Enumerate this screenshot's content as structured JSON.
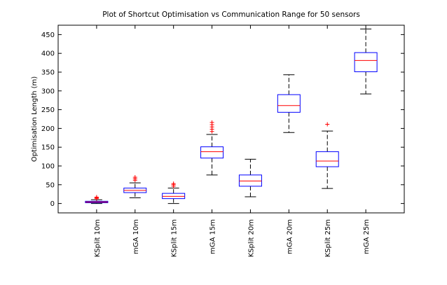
{
  "chart_data": {
    "type": "box",
    "title": "Plot of Shortcut Optimisation vs Communication Range for 50 sensors",
    "xlabel": "",
    "ylabel": "Optimisation Length (m)",
    "ylim": [
      -25,
      475
    ],
    "yticks": [
      0,
      50,
      100,
      150,
      200,
      250,
      300,
      350,
      400,
      450
    ],
    "grid": false,
    "colors": {
      "box": "#0000ff",
      "median": "#ff0000",
      "whisker": "#000000",
      "outlier": "#ff0000"
    },
    "categories": [
      "KSplit 10m",
      "mGA 10m",
      "KSplit 15m",
      "mGA 15m",
      "KSplit 20m",
      "mGA 20m",
      "KSplit 25m",
      "mGA 25m"
    ],
    "boxes": [
      {
        "whisker_low": 0,
        "q1": 2,
        "median": 4,
        "q3": 6,
        "whisker_high": 10,
        "outliers": [
          13,
          15,
          17
        ]
      },
      {
        "whisker_low": 15,
        "q1": 29,
        "median": 35,
        "q3": 41,
        "whisker_high": 55,
        "outliers": [
          62,
          66,
          70
        ]
      },
      {
        "whisker_low": 0,
        "q1": 13,
        "median": 19,
        "q3": 27,
        "whisker_high": 41,
        "outliers": [
          46,
          50,
          53
        ]
      },
      {
        "whisker_low": 76,
        "q1": 121,
        "median": 138,
        "q3": 151,
        "whisker_high": 184,
        "outliers": [
          192,
          198,
          204,
          210,
          216
        ]
      },
      {
        "whisker_low": 18,
        "q1": 46,
        "median": 60,
        "q3": 76,
        "whisker_high": 118,
        "outliers": []
      },
      {
        "whisker_low": 189,
        "q1": 243,
        "median": 261,
        "q3": 290,
        "whisker_high": 343,
        "outliers": []
      },
      {
        "whisker_low": 40,
        "q1": 98,
        "median": 113,
        "q3": 138,
        "whisker_high": 193,
        "outliers": [
          211
        ]
      },
      {
        "whisker_low": 292,
        "q1": 351,
        "median": 381,
        "q3": 402,
        "whisker_high": 465,
        "outliers": []
      }
    ]
  }
}
